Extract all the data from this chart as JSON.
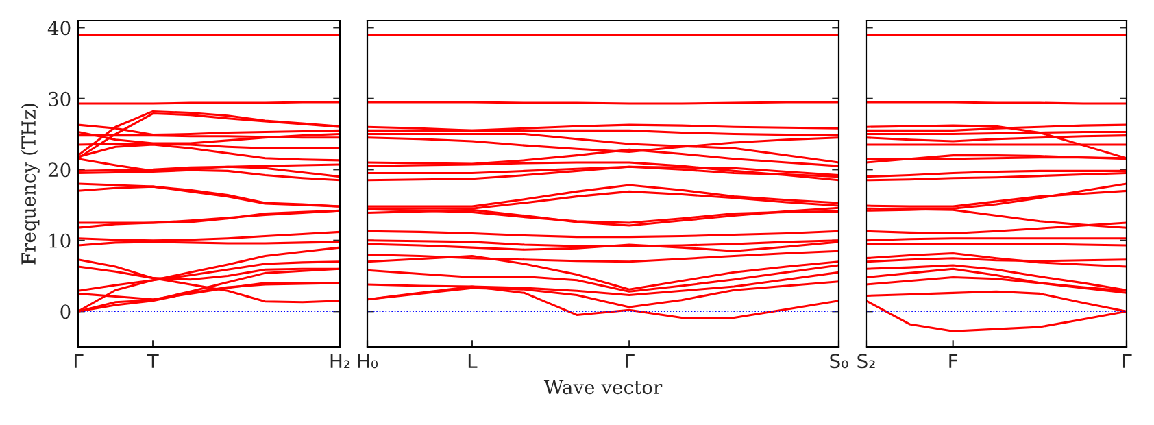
{
  "chart_data": [
    {
      "type": "line",
      "ylabel": "Frequency (THz)",
      "categories": [
        "Γ",
        null,
        "T",
        null,
        null,
        null,
        null,
        "H₂"
      ],
      "ylim": [
        -5,
        41
      ],
      "yticks": [
        0,
        10,
        20,
        30,
        40
      ],
      "grid": false,
      "legend": false,
      "line_style": "solid",
      "marker": "none",
      "ref_lines": [
        {
          "axis": "y",
          "value": 0,
          "color": "#0000ff",
          "line_style": "dotted"
        }
      ],
      "series": [
        {
          "color": "#ff0000",
          "values": [
            0,
            0.9,
            1.5,
            2.6,
            3.4,
            3.8,
            3.9,
            4.0
          ]
        },
        {
          "color": "#ff0000",
          "values": [
            0,
            1.3,
            1.6,
            2.8,
            4.1,
            5.4,
            5.7,
            6.0
          ]
        },
        {
          "color": "#ff0000",
          "values": [
            0,
            3.0,
            4.4,
            5.1,
            5.9,
            6.7,
            6.9,
            7.0
          ]
        },
        {
          "color": "#ff0000",
          "values": [
            2.5,
            2.1,
            1.7,
            2.5,
            3.3,
            4.0,
            4.0,
            4.0
          ]
        },
        {
          "color": "#ff0000",
          "values": [
            2.9,
            3.7,
            4.4,
            5.5,
            6.6,
            7.8,
            8.4,
            9.0
          ]
        },
        {
          "color": "#ff0000",
          "values": [
            6.3,
            5.6,
            4.7,
            3.8,
            2.9,
            1.4,
            1.3,
            1.5
          ]
        },
        {
          "color": "#ff0000",
          "values": [
            7.3,
            6.3,
            4.7,
            4.5,
            5.0,
            5.9,
            6.0,
            6.0
          ]
        },
        {
          "color": "#ff0000",
          "values": [
            9.3,
            9.7,
            9.8,
            9.7,
            9.6,
            9.6,
            9.7,
            9.8
          ]
        },
        {
          "color": "#ff0000",
          "values": [
            10.3,
            10.1,
            10.0,
            10.1,
            10.3,
            10.6,
            10.9,
            11.2
          ]
        },
        {
          "color": "#ff0000",
          "values": [
            11.8,
            12.3,
            12.5,
            12.8,
            13.2,
            13.6,
            13.9,
            14.2
          ]
        },
        {
          "color": "#ff0000",
          "values": [
            12.5,
            12.5,
            12.5,
            12.6,
            13.1,
            13.8,
            14.0,
            14.2
          ]
        },
        {
          "color": "#ff0000",
          "values": [
            17.0,
            17.4,
            17.6,
            16.9,
            16.2,
            15.2,
            15.0,
            14.8
          ]
        },
        {
          "color": "#ff0000",
          "values": [
            18.0,
            17.8,
            17.6,
            17.1,
            16.4,
            15.3,
            15.1,
            14.8
          ]
        },
        {
          "color": "#ff0000",
          "values": [
            19.5,
            19.6,
            19.7,
            19.9,
            19.8,
            19.2,
            18.8,
            18.5
          ]
        },
        {
          "color": "#ff0000",
          "values": [
            19.8,
            19.9,
            20.0,
            20.3,
            20.4,
            20.2,
            19.6,
            19.0
          ]
        },
        {
          "color": "#ff0000",
          "values": [
            21.5,
            20.6,
            19.8,
            20.1,
            20.4,
            20.5,
            20.6,
            20.7
          ]
        },
        {
          "color": "#ff0000",
          "values": [
            21.8,
            23.2,
            23.5,
            23.0,
            22.3,
            21.6,
            21.4,
            21.3
          ]
        },
        {
          "color": "#ff0000",
          "values": [
            21.6,
            25.0,
            27.9,
            27.7,
            27.2,
            26.8,
            26.4,
            26.0
          ]
        },
        {
          "color": "#ff0000",
          "values": [
            22.0,
            26.0,
            28.2,
            28.0,
            27.6,
            26.9,
            26.5,
            26.1
          ]
        },
        {
          "color": "#ff0000",
          "values": [
            23.5,
            23.6,
            23.6,
            23.5,
            23.2,
            23.0,
            23.0,
            23.0
          ]
        },
        {
          "color": "#ff0000",
          "values": [
            24.8,
            24.8,
            24.8,
            24.7,
            24.7,
            24.6,
            24.5,
            24.5
          ]
        },
        {
          "color": "#ff0000",
          "values": [
            25.3,
            24.2,
            23.7,
            23.7,
            24.1,
            24.5,
            24.8,
            25.0
          ]
        },
        {
          "color": "#ff0000",
          "values": [
            26.3,
            25.8,
            24.9,
            25.0,
            25.2,
            25.3,
            25.4,
            25.5
          ]
        },
        {
          "color": "#ff0000",
          "values": [
            29.3,
            29.3,
            29.3,
            29.4,
            29.4,
            29.4,
            29.5,
            29.5
          ]
        },
        {
          "color": "#ff0000",
          "values": [
            39.0,
            39.0,
            39.0,
            39.0,
            39.0,
            39.0,
            39.0,
            39.0
          ]
        }
      ]
    },
    {
      "type": "line",
      "xlabel": "Wave vector",
      "categories": [
        "H₀",
        null,
        "L",
        null,
        null,
        "Γ",
        null,
        null,
        null,
        "S₀"
      ],
      "ylim": [
        -5,
        41
      ],
      "yticks": [
        0,
        10,
        20,
        30,
        40
      ],
      "tick_labels": "x",
      "grid": false,
      "legend": false,
      "line_style": "solid",
      "marker": "none",
      "ref_lines": [
        {
          "axis": "y",
          "value": 0,
          "color": "#0000ff",
          "line_style": "dotted"
        }
      ],
      "series": [
        {
          "color": "#ff0000",
          "values": [
            1.7,
            2.6,
            3.5,
            2.6,
            -0.5,
            0.2,
            -0.9,
            -0.9,
            0.3,
            1.5
          ]
        },
        {
          "color": "#ff0000",
          "values": [
            1.7,
            2.5,
            3.3,
            3.1,
            2.3,
            0.6,
            1.6,
            3.0,
            3.6,
            4.2
          ]
        },
        {
          "color": "#ff0000",
          "values": [
            3.8,
            3.6,
            3.5,
            3.3,
            2.9,
            2.3,
            2.9,
            3.5,
            4.5,
            5.5
          ]
        },
        {
          "color": "#ff0000",
          "values": [
            5.8,
            5.3,
            4.8,
            4.9,
            4.4,
            2.8,
            3.6,
            4.5,
            5.5,
            6.5
          ]
        },
        {
          "color": "#ff0000",
          "values": [
            7.0,
            7.4,
            7.8,
            6.7,
            5.2,
            3.1,
            4.3,
            5.5,
            6.3,
            7.0
          ]
        },
        {
          "color": "#ff0000",
          "values": [
            8.0,
            7.8,
            7.5,
            7.3,
            7.1,
            7.0,
            7.4,
            7.8,
            8.2,
            8.5
          ]
        },
        {
          "color": "#ff0000",
          "values": [
            9.5,
            9.3,
            9.0,
            8.7,
            8.9,
            9.4,
            9.0,
            8.5,
            9.1,
            9.8
          ]
        },
        {
          "color": "#ff0000",
          "values": [
            10.0,
            9.9,
            9.8,
            9.4,
            9.2,
            9.2,
            9.3,
            9.5,
            9.8,
            10.0
          ]
        },
        {
          "color": "#ff0000",
          "values": [
            11.3,
            11.2,
            11.0,
            10.7,
            10.5,
            10.5,
            10.6,
            10.8,
            11.0,
            11.3
          ]
        },
        {
          "color": "#ff0000",
          "values": [
            13.9,
            14.1,
            14.3,
            13.5,
            12.6,
            12.1,
            12.8,
            13.5,
            14.1,
            14.6
          ]
        },
        {
          "color": "#ff0000",
          "values": [
            14.4,
            14.2,
            14.0,
            13.3,
            12.7,
            12.5,
            13.1,
            13.8,
            14.0,
            14.1
          ]
        },
        {
          "color": "#ff0000",
          "values": [
            14.5,
            14.5,
            14.5,
            15.3,
            16.2,
            16.9,
            16.5,
            16.0,
            15.4,
            14.9
          ]
        },
        {
          "color": "#ff0000",
          "values": [
            14.8,
            14.8,
            14.8,
            15.8,
            16.9,
            17.8,
            17.1,
            16.2,
            15.7,
            15.3
          ]
        },
        {
          "color": "#ff0000",
          "values": [
            18.5,
            18.6,
            18.7,
            19.2,
            19.8,
            20.4,
            20.0,
            19.5,
            19.3,
            19.0
          ]
        },
        {
          "color": "#ff0000",
          "values": [
            19.5,
            19.5,
            19.5,
            19.8,
            20.1,
            20.4,
            20.3,
            20.2,
            19.7,
            19.2
          ]
        },
        {
          "color": "#ff0000",
          "values": [
            20.5,
            20.6,
            20.7,
            20.9,
            21.0,
            21.0,
            20.5,
            19.8,
            19.2,
            18.5
          ]
        },
        {
          "color": "#ff0000",
          "values": [
            21.0,
            20.9,
            20.8,
            21.3,
            22.0,
            22.8,
            22.2,
            21.5,
            21.0,
            20.5
          ]
        },
        {
          "color": "#ff0000",
          "values": [
            24.5,
            24.3,
            24.0,
            23.4,
            22.9,
            22.5,
            23.2,
            23.8,
            24.2,
            24.5
          ]
        },
        {
          "color": "#ff0000",
          "values": [
            25.0,
            25.0,
            25.0,
            25.0,
            24.3,
            23.6,
            23.3,
            23.0,
            22.0,
            21.0
          ]
        },
        {
          "color": "#ff0000",
          "values": [
            25.5,
            25.5,
            25.5,
            25.5,
            25.5,
            25.5,
            25.2,
            25.0,
            24.9,
            24.8
          ]
        },
        {
          "color": "#ff0000",
          "values": [
            26.0,
            25.8,
            25.5,
            25.8,
            26.1,
            26.3,
            26.2,
            26.0,
            25.9,
            25.8
          ]
        },
        {
          "color": "#ff0000",
          "values": [
            29.5,
            29.5,
            29.5,
            29.4,
            29.4,
            29.3,
            29.3,
            29.4,
            29.5,
            29.5
          ]
        },
        {
          "color": "#ff0000",
          "values": [
            39.0,
            39.0,
            39.0,
            39.0,
            39.0,
            39.0,
            39.0,
            39.0,
            39.0,
            39.0
          ]
        }
      ]
    },
    {
      "type": "line",
      "categories": [
        "S₂",
        null,
        "F",
        null,
        null,
        null,
        "Γ"
      ],
      "ylim": [
        -5,
        41
      ],
      "yticks": [
        0,
        10,
        20,
        30,
        40
      ],
      "tick_labels": "x",
      "grid": false,
      "legend": false,
      "line_style": "solid",
      "marker": "none",
      "ref_lines": [
        {
          "axis": "y",
          "value": 0,
          "color": "#0000ff",
          "line_style": "dotted"
        }
      ],
      "series": [
        {
          "color": "#ff0000",
          "values": [
            1.5,
            -1.8,
            -2.8,
            -2.5,
            -2.2,
            -1.1,
            0
          ]
        },
        {
          "color": "#ff0000",
          "values": [
            2.2,
            2.4,
            2.6,
            2.8,
            2.5,
            1.2,
            0
          ]
        },
        {
          "color": "#ff0000",
          "values": [
            3.8,
            4.3,
            4.8,
            4.6,
            4.0,
            3.3,
            2.6
          ]
        },
        {
          "color": "#ff0000",
          "values": [
            4.8,
            5.4,
            6.0,
            5.1,
            4.0,
            3.4,
            2.9
          ]
        },
        {
          "color": "#ff0000",
          "values": [
            6.0,
            6.2,
            6.5,
            5.9,
            4.9,
            4.0,
            3.0
          ]
        },
        {
          "color": "#ff0000",
          "values": [
            7.0,
            7.3,
            7.5,
            7.2,
            7.1,
            7.2,
            7.3
          ]
        },
        {
          "color": "#ff0000",
          "values": [
            7.5,
            7.9,
            8.2,
            7.5,
            6.9,
            6.6,
            6.3
          ]
        },
        {
          "color": "#ff0000",
          "values": [
            9.5,
            9.5,
            9.5,
            9.5,
            9.5,
            9.4,
            9.3
          ]
        },
        {
          "color": "#ff0000",
          "values": [
            10.0,
            10.2,
            10.3,
            10.3,
            10.3,
            10.3,
            10.3
          ]
        },
        {
          "color": "#ff0000",
          "values": [
            11.3,
            11.1,
            11.0,
            11.3,
            11.7,
            12.1,
            12.5
          ]
        },
        {
          "color": "#ff0000",
          "values": [
            14.5,
            14.4,
            14.3,
            13.5,
            12.7,
            12.2,
            11.8
          ]
        },
        {
          "color": "#ff0000",
          "values": [
            14.9,
            14.8,
            14.8,
            15.5,
            16.2,
            16.6,
            17.0
          ]
        },
        {
          "color": "#ff0000",
          "values": [
            14.2,
            14.3,
            14.5,
            15.1,
            16.0,
            17.0,
            18.0
          ]
        },
        {
          "color": "#ff0000",
          "values": [
            18.5,
            18.6,
            18.8,
            18.9,
            19.1,
            19.3,
            19.5
          ]
        },
        {
          "color": "#ff0000",
          "values": [
            19.0,
            19.2,
            19.5,
            19.7,
            19.8,
            19.8,
            19.8
          ]
        },
        {
          "color": "#ff0000",
          "values": [
            21.0,
            21.5,
            22.0,
            22.0,
            21.9,
            21.7,
            21.5
          ]
        },
        {
          "color": "#ff0000",
          "values": [
            21.5,
            21.5,
            21.5,
            21.6,
            21.7,
            21.7,
            21.6
          ]
        },
        {
          "color": "#ff0000",
          "values": [
            23.5,
            23.5,
            23.5,
            23.5,
            23.5,
            23.5,
            23.5
          ]
        },
        {
          "color": "#ff0000",
          "values": [
            24.5,
            24.2,
            24.0,
            24.3,
            24.5,
            24.7,
            24.8
          ]
        },
        {
          "color": "#ff0000",
          "values": [
            25.0,
            25.0,
            25.0,
            25.1,
            25.2,
            25.3,
            25.3
          ]
        },
        {
          "color": "#ff0000",
          "values": [
            26.0,
            26.1,
            26.2,
            26.1,
            25.2,
            23.4,
            21.6
          ]
        },
        {
          "color": "#ff0000",
          "values": [
            25.5,
            25.5,
            25.5,
            25.8,
            26.0,
            26.2,
            26.3
          ]
        },
        {
          "color": "#ff0000",
          "values": [
            29.5,
            29.5,
            29.5,
            29.4,
            29.4,
            29.3,
            29.3
          ]
        },
        {
          "color": "#ff0000",
          "values": [
            39.0,
            39.0,
            39.0,
            39.0,
            39.0,
            39.0,
            39.0
          ]
        }
      ]
    }
  ]
}
